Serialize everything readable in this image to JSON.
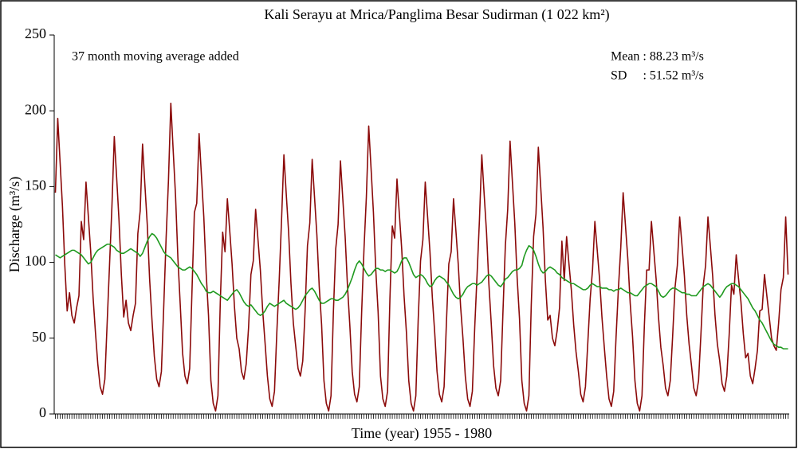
{
  "chart_data": {
    "type": "line",
    "title": "Kali Serayu at Mrica/Panglima Besar Sudirman (1 022 km²)",
    "annotations": [
      "37 month moving average added",
      "Mean : 88.23 m³/s",
      "SD     : 51.52 m³/s"
    ],
    "ylabel": "Discharge (m³/s)",
    "xlabel": "Time (year) 1955 - 1980",
    "ylim": [
      0,
      250
    ],
    "yticks": [
      0,
      50,
      100,
      150,
      200,
      250
    ],
    "categories": [
      null,
      null,
      null,
      null,
      null,
      null,
      null,
      null,
      null,
      null,
      null,
      null,
      null,
      null,
      null,
      null,
      null,
      null,
      null,
      null,
      null,
      null,
      null,
      null,
      null,
      null,
      null,
      null,
      null,
      null,
      null,
      null,
      null,
      null,
      null,
      null,
      null,
      null,
      null,
      null,
      null,
      null,
      null,
      null,
      null,
      null,
      null,
      null,
      null,
      null,
      null,
      null,
      null,
      null,
      null,
      null,
      null,
      null,
      null,
      null,
      null,
      null,
      null,
      null,
      null,
      null,
      null,
      null,
      null,
      null,
      null,
      null,
      null,
      null,
      null,
      null,
      null,
      null,
      null,
      null,
      null,
      null,
      null,
      null,
      null,
      null,
      null,
      null,
      null,
      null,
      null,
      null,
      null,
      null,
      null,
      null,
      null,
      null,
      null,
      null,
      null,
      null,
      null,
      null,
      null,
      null,
      null,
      null,
      null,
      null,
      null,
      null,
      null,
      null,
      null,
      null,
      null,
      null,
      null,
      null,
      null,
      null,
      null,
      null,
      null,
      null,
      null,
      null,
      null,
      null,
      null,
      null,
      null,
      null,
      null,
      null,
      null,
      null,
      null,
      null,
      null,
      null,
      null,
      null,
      null,
      null,
      null,
      null,
      null,
      null,
      null,
      null,
      null,
      null,
      null,
      null,
      null,
      null,
      null,
      null,
      null,
      null,
      null,
      null,
      null,
      null,
      null,
      null,
      null,
      null,
      null,
      null,
      null,
      null,
      null,
      null,
      null,
      null,
      null,
      null,
      null,
      null,
      null,
      null,
      null,
      null,
      null,
      null,
      null,
      null,
      null,
      null,
      null,
      null,
      null,
      null,
      null,
      null,
      null,
      null,
      null,
      null,
      null,
      null,
      null,
      null,
      null,
      null,
      null,
      null,
      null,
      null,
      null,
      null,
      null,
      null,
      null,
      null,
      null,
      null,
      null,
      null,
      null,
      null,
      null,
      null,
      null,
      null,
      null,
      null,
      null,
      null,
      null,
      null,
      null,
      null,
      null,
      null,
      null,
      null,
      null,
      null,
      null,
      null,
      null,
      null,
      null,
      null,
      null,
      null,
      null,
      null,
      null,
      null,
      null,
      null,
      null,
      null,
      null,
      null,
      null,
      null,
      null,
      null,
      null,
      null,
      null,
      null,
      null,
      null,
      null,
      null,
      null,
      null,
      null,
      null,
      null,
      null,
      null,
      null,
      null,
      null,
      null,
      null,
      null,
      null,
      null,
      null,
      null,
      null,
      null,
      null,
      null,
      null,
      null,
      null,
      null,
      null,
      null,
      null,
      null,
      null,
      null,
      null,
      null,
      null,
      null,
      null,
      null,
      null,
      null,
      null
    ],
    "series": [
      {
        "color": "#8b0a0a",
        "values": [
          146,
          195,
          166,
          137,
          98,
          68,
          80,
          65,
          60,
          70,
          78,
          127,
          115,
          153,
          130,
          107,
          77,
          54,
          33,
          18,
          13,
          23,
          61,
          99,
          137,
          183,
          156,
          128,
          92,
          64,
          75,
          60,
          55,
          65,
          73,
          119,
          134,
          178,
          151,
          125,
          89,
          62,
          38,
          23,
          18,
          28,
          71,
          116,
          154,
          205,
          174,
          144,
          103,
          72,
          40,
          25,
          20,
          30,
          82,
          133,
          139,
          185,
          157,
          130,
          93,
          65,
          22,
          7,
          2,
          12,
          74,
          120,
          107,
          142,
          121,
          99,
          71,
          50,
          43,
          28,
          23,
          33,
          57,
          92,
          101,
          135,
          115,
          95,
          68,
          47,
          25,
          10,
          5,
          15,
          54,
          88,
          128,
          171,
          145,
          120,
          86,
          60,
          45,
          30,
          25,
          35,
          68,
          111,
          126,
          168,
          143,
          118,
          84,
          59,
          22,
          7,
          2,
          12,
          67,
          109,
          125,
          167,
          142,
          117,
          84,
          58,
          28,
          13,
          8,
          18,
          67,
          109,
          143,
          190,
          162,
          133,
          95,
          67,
          25,
          10,
          5,
          15,
          76,
          124,
          116,
          155,
          132,
          109,
          78,
          54,
          22,
          7,
          2,
          12,
          62,
          101,
          115,
          153,
          130,
          107,
          77,
          54,
          28,
          13,
          8,
          18,
          61,
          99,
          107,
          142,
          121,
          99,
          71,
          50,
          25,
          10,
          5,
          15,
          57,
          92,
          128,
          171,
          145,
          120,
          86,
          60,
          32,
          17,
          12,
          22,
          68,
          111,
          135,
          180,
          153,
          126,
          90,
          63,
          22,
          7,
          2,
          12,
          72,
          117,
          132,
          176,
          150,
          123,
          88,
          62,
          65,
          50,
          45,
          55,
          70,
          114,
          88,
          117,
          99,
          82,
          59,
          41,
          28,
          13,
          8,
          18,
          47,
          76,
          95,
          127,
          108,
          89,
          64,
          44,
          25,
          10,
          5,
          15,
          51,
          83,
          110,
          146,
          124,
          102,
          73,
          51,
          22,
          7,
          2,
          12,
          58,
          95,
          95,
          127,
          108,
          89,
          64,
          44,
          32,
          17,
          12,
          22,
          51,
          83,
          98,
          130,
          111,
          91,
          65,
          46,
          32,
          17,
          12,
          22,
          52,
          85,
          98,
          130,
          111,
          91,
          65,
          46,
          35,
          20,
          15,
          25,
          52,
          85,
          79,
          105,
          89,
          74,
          53,
          37,
          40,
          25,
          20,
          30,
          42,
          68,
          69,
          92,
          78,
          64,
          50,
          45,
          42,
          60,
          82,
          90,
          130,
          92
        ]
      },
      {
        "color": "#1f9a1f",
        "values": [
          105,
          104,
          103,
          104,
          105,
          106,
          107,
          108,
          108,
          107,
          106,
          105,
          103,
          101,
          99,
          100,
          103,
          106,
          108,
          109,
          110,
          111,
          112,
          112,
          111,
          110,
          108,
          107,
          106,
          106,
          107,
          108,
          109,
          108,
          107,
          106,
          104,
          106,
          110,
          114,
          117,
          119,
          118,
          116,
          113,
          110,
          107,
          105,
          104,
          103,
          101,
          99,
          97,
          96,
          95,
          95,
          96,
          97,
          96,
          94,
          92,
          89,
          86,
          84,
          81,
          80,
          80,
          81,
          80,
          79,
          78,
          77,
          76,
          75,
          77,
          79,
          81,
          82,
          80,
          77,
          74,
          72,
          71,
          72,
          70,
          68,
          66,
          65,
          66,
          68,
          71,
          73,
          72,
          71,
          72,
          73,
          74,
          75,
          73,
          72,
          71,
          70,
          69,
          70,
          72,
          75,
          78,
          80,
          82,
          83,
          81,
          78,
          75,
          73,
          73,
          74,
          75,
          76,
          76,
          75,
          75,
          76,
          77,
          79,
          82,
          86,
          90,
          95,
          99,
          101,
          99,
          96,
          93,
          91,
          92,
          94,
          96,
          96,
          95,
          95,
          94,
          95,
          95,
          94,
          93,
          94,
          97,
          101,
          103,
          103,
          100,
          96,
          92,
          90,
          91,
          92,
          91,
          89,
          86,
          84,
          85,
          88,
          90,
          91,
          90,
          89,
          87,
          85,
          82,
          79,
          77,
          76,
          77,
          79,
          82,
          84,
          85,
          86,
          86,
          85,
          86,
          87,
          89,
          91,
          92,
          91,
          89,
          87,
          85,
          84,
          86,
          89,
          90,
          92,
          94,
          95,
          95,
          96,
          98,
          104,
          108,
          111,
          110,
          108,
          104,
          99,
          95,
          93,
          94,
          96,
          97,
          96,
          95,
          93,
          92,
          90,
          89,
          88,
          87,
          86,
          86,
          85,
          84,
          83,
          82,
          82,
          83,
          85,
          86,
          85,
          84,
          84,
          83,
          83,
          83,
          82,
          82,
          81,
          82,
          82,
          83,
          82,
          81,
          80,
          80,
          79,
          78,
          78,
          80,
          82,
          84,
          85,
          86,
          86,
          85,
          84,
          81,
          78,
          77,
          78,
          80,
          82,
          83,
          83,
          82,
          81,
          80,
          80,
          79,
          79,
          78,
          78,
          78,
          80,
          82,
          84,
          85,
          86,
          85,
          83,
          81,
          79,
          77,
          79,
          82,
          84,
          85,
          86,
          86,
          85,
          84,
          82,
          80,
          78,
          76,
          73,
          70,
          68,
          65,
          62,
          60,
          57,
          54,
          51,
          48,
          46,
          45,
          44,
          44,
          43,
          43,
          43
        ]
      }
    ]
  }
}
